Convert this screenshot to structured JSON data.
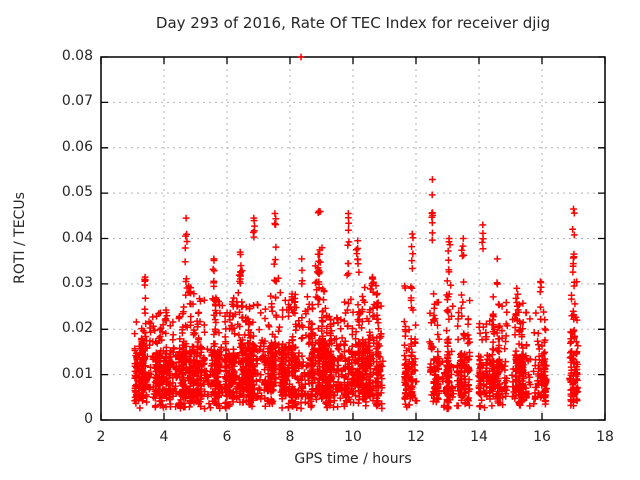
{
  "chart_data": {
    "type": "scatter",
    "title": "Day 293 of 2016, Rate Of TEC Index for receiver djig",
    "xlabel": "GPS time / hours",
    "ylabel": "ROTI / TECUs",
    "xlim": [
      2,
      18
    ],
    "ylim": [
      0,
      0.08
    ],
    "xticks": [
      2,
      4,
      6,
      8,
      10,
      12,
      14,
      16,
      18
    ],
    "xtick_labels": [
      "2",
      "4",
      "6",
      "8",
      "10",
      "12",
      "14",
      "16",
      "18"
    ],
    "yticks": [
      0,
      0.01,
      0.02,
      0.03,
      0.04,
      0.05,
      0.06,
      0.07,
      0.08
    ],
    "ytick_labels": [
      "0",
      "0.01",
      "0.02",
      "0.03",
      "0.04",
      "0.05",
      "0.06",
      "0.07",
      "0.08"
    ],
    "grid": "dashed",
    "legend": "none",
    "marker": "plus",
    "marker_color": "#ff0000",
    "grid_color": "#b3b3b3",
    "border_color": "#000000",
    "seed": 293,
    "outlier": {
      "x": 8.35,
      "y": 0.08
    },
    "base_segments": [
      {
        "x0": 3.05,
        "x1": 3.6,
        "points_per_hour": 300,
        "ybot": 0.004,
        "ymid": 0.014,
        "ytop": 0.022
      },
      {
        "x0": 3.6,
        "x1": 4.65,
        "points_per_hour": 300,
        "ybot": 0.004,
        "ymid": 0.014,
        "ytop": 0.025
      },
      {
        "x0": 4.65,
        "x1": 5.0,
        "points_per_hour": 300,
        "ybot": 0.004,
        "ymid": 0.015,
        "ytop": 0.03
      },
      {
        "x0": 5.0,
        "x1": 6.25,
        "points_per_hour": 300,
        "ybot": 0.004,
        "ymid": 0.014,
        "ytop": 0.027
      },
      {
        "x0": 6.25,
        "x1": 6.65,
        "points_per_hour": 300,
        "ybot": 0.005,
        "ymid": 0.016,
        "ytop": 0.034
      },
      {
        "x0": 6.65,
        "x1": 7.25,
        "points_per_hour": 300,
        "ybot": 0.004,
        "ymid": 0.014,
        "ytop": 0.026
      },
      {
        "x0": 7.25,
        "x1": 7.7,
        "points_per_hour": 300,
        "ybot": 0.005,
        "ymid": 0.016,
        "ytop": 0.033
      },
      {
        "x0": 7.7,
        "x1": 8.75,
        "points_per_hour": 300,
        "ybot": 0.004,
        "ymid": 0.014,
        "ytop": 0.028
      },
      {
        "x0": 8.75,
        "x1": 9.1,
        "points_per_hour": 320,
        "ybot": 0.005,
        "ymid": 0.017,
        "ytop": 0.038
      },
      {
        "x0": 9.1,
        "x1": 9.8,
        "points_per_hour": 300,
        "ybot": 0.004,
        "ymid": 0.014,
        "ytop": 0.026
      },
      {
        "x0": 9.8,
        "x1": 10.35,
        "points_per_hour": 300,
        "ybot": 0.005,
        "ymid": 0.015,
        "ytop": 0.03
      },
      {
        "x0": 10.35,
        "x1": 10.95,
        "points_per_hour": 300,
        "ybot": 0.004,
        "ymid": 0.015,
        "ytop": 0.03
      },
      {
        "x0": 11.62,
        "x1": 12.03,
        "points_per_hour": 260,
        "ybot": 0.004,
        "ymid": 0.014,
        "ytop": 0.03
      },
      {
        "x0": 12.42,
        "x1": 12.75,
        "points_per_hour": 260,
        "ybot": 0.004,
        "ymid": 0.013,
        "ytop": 0.028
      },
      {
        "x0": 12.82,
        "x1": 13.2,
        "points_per_hour": 280,
        "ybot": 0.003,
        "ymid": 0.013,
        "ytop": 0.028
      },
      {
        "x0": 13.28,
        "x1": 13.72,
        "points_per_hour": 280,
        "ybot": 0.004,
        "ymid": 0.014,
        "ytop": 0.03
      },
      {
        "x0": 13.98,
        "x1": 14.5,
        "points_per_hour": 260,
        "ybot": 0.004,
        "ymid": 0.013,
        "ytop": 0.028
      },
      {
        "x0": 14.55,
        "x1": 14.92,
        "points_per_hour": 240,
        "ybot": 0.004,
        "ymid": 0.012,
        "ytop": 0.026
      },
      {
        "x0": 15.02,
        "x1": 15.65,
        "points_per_hour": 260,
        "ybot": 0.004,
        "ymid": 0.013,
        "ytop": 0.027
      },
      {
        "x0": 15.72,
        "x1": 16.15,
        "points_per_hour": 240,
        "ybot": 0.004,
        "ymid": 0.012,
        "ytop": 0.026
      },
      {
        "x0": 16.87,
        "x1": 17.15,
        "points_per_hour": 340,
        "ybot": 0.004,
        "ymid": 0.015,
        "ytop": 0.031
      }
    ],
    "spikes": [
      {
        "x": 3.4,
        "y0": 0.023,
        "y1": 0.0315,
        "n": 8,
        "w": 0.05
      },
      {
        "x": 4.7,
        "y0": 0.029,
        "y1": 0.0445,
        "n": 9,
        "w": 0.04
      },
      {
        "x": 5.58,
        "y0": 0.025,
        "y1": 0.0355,
        "n": 8,
        "w": 0.05
      },
      {
        "x": 6.42,
        "y0": 0.028,
        "y1": 0.037,
        "n": 8,
        "w": 0.04
      },
      {
        "x": 6.85,
        "y0": 0.037,
        "y1": 0.0445,
        "n": 6,
        "w": 0.04
      },
      {
        "x": 7.52,
        "y0": 0.03,
        "y1": 0.0455,
        "n": 10,
        "w": 0.05
      },
      {
        "x": 8.37,
        "y0": 0.028,
        "y1": 0.0355,
        "n": 4,
        "w": 0.03
      },
      {
        "x": 8.92,
        "y0": 0.026,
        "y1": 0.046,
        "n": 16,
        "w": 0.05
      },
      {
        "x": 9.85,
        "y0": 0.029,
        "y1": 0.0455,
        "n": 10,
        "w": 0.04
      },
      {
        "x": 10.15,
        "y0": 0.026,
        "y1": 0.0395,
        "n": 8,
        "w": 0.05
      },
      {
        "x": 10.62,
        "y0": 0.024,
        "y1": 0.0315,
        "n": 10,
        "w": 0.06
      },
      {
        "x": 11.88,
        "y0": 0.03,
        "y1": 0.041,
        "n": 6,
        "w": 0.05
      },
      {
        "x": 12.52,
        "y0": 0.031,
        "y1": 0.053,
        "n": 9,
        "w": 0.04
      },
      {
        "x": 13.05,
        "y0": 0.029,
        "y1": 0.04,
        "n": 9,
        "w": 0.07
      },
      {
        "x": 13.5,
        "y0": 0.028,
        "y1": 0.04,
        "n": 6,
        "w": 0.06
      },
      {
        "x": 14.12,
        "y0": 0.037,
        "y1": 0.043,
        "n": 5,
        "w": 0.04
      },
      {
        "x": 14.58,
        "y0": 0.029,
        "y1": 0.0355,
        "n": 3,
        "w": 0.03
      },
      {
        "x": 15.2,
        "y0": 0.022,
        "y1": 0.029,
        "n": 6,
        "w": 0.05
      },
      {
        "x": 15.95,
        "y0": 0.023,
        "y1": 0.0305,
        "n": 5,
        "w": 0.04
      },
      {
        "x": 17.0,
        "y0": 0.031,
        "y1": 0.0465,
        "n": 10,
        "w": 0.05
      }
    ]
  }
}
